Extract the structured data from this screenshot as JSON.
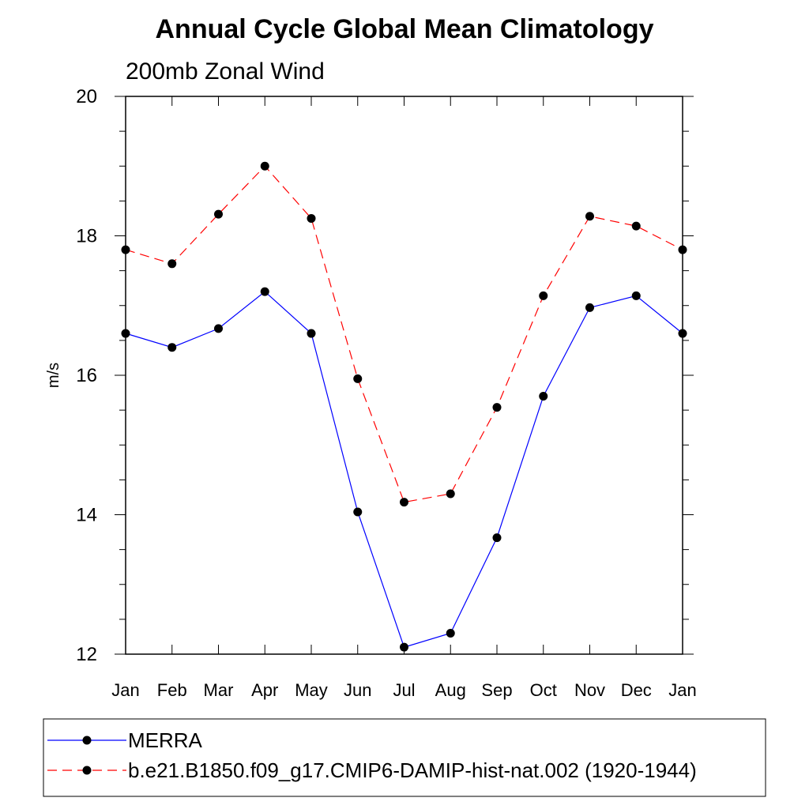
{
  "chart_data": {
    "type": "line",
    "title": "Annual Cycle Global Mean Climatology",
    "subtitle": "200mb Zonal Wind",
    "xlabel": "",
    "ylabel": "m/s",
    "ylim": [
      12,
      20
    ],
    "y_ticks": [
      "12",
      "14",
      "16",
      "18",
      "20"
    ],
    "categories": [
      "Jan",
      "Feb",
      "Mar",
      "Apr",
      "May",
      "Jun",
      "Jul",
      "Aug",
      "Sep",
      "Oct",
      "Nov",
      "Dec",
      "Jan"
    ],
    "grid": false,
    "legend_position": "bottom",
    "series": [
      {
        "name": "MERRA",
        "color": "#0000ff",
        "line_style": "solid",
        "marker": "filled-circle",
        "values": [
          16.6,
          16.4,
          16.67,
          17.2,
          16.6,
          14.04,
          12.1,
          12.3,
          13.67,
          15.7,
          16.97,
          17.14,
          16.6
        ]
      },
      {
        "name": "b.e21.B1850.f09_g17.CMIP6-DAMIP-hist-nat.002 (1920-1944)",
        "color": "#ff0000",
        "line_style": "dashed",
        "marker": "filled-circle",
        "values": [
          17.8,
          17.6,
          18.31,
          19.0,
          18.25,
          15.95,
          14.18,
          14.3,
          15.54,
          17.14,
          18.28,
          18.14,
          17.8
        ]
      }
    ]
  }
}
